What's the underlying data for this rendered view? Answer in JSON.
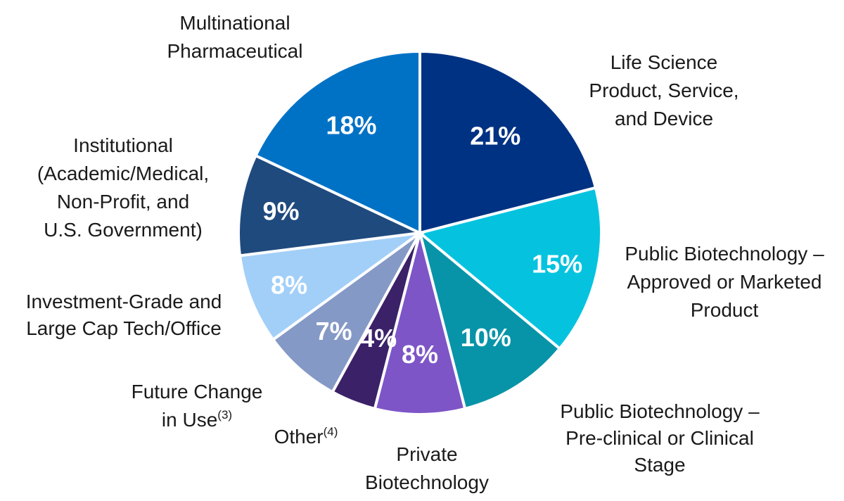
{
  "chart_data": {
    "type": "pie",
    "title": "",
    "slices": [
      {
        "label_lines": [
          "Life Science",
          "Product, Service,",
          "and Device"
        ],
        "percent_label": "21%",
        "value": 21,
        "color": "#003283"
      },
      {
        "label_lines": [
          "Public Biotechnology –",
          "Approved or Marketed",
          "Product"
        ],
        "percent_label": "15%",
        "value": 15,
        "color": "#05c3df"
      },
      {
        "label_lines": [
          "Public Biotechnology –",
          "Pre-clinical or Clinical",
          "Stage"
        ],
        "percent_label": "10%",
        "value": 10,
        "color": "#0894a8"
      },
      {
        "label_lines": [
          "Private",
          "Biotechnology"
        ],
        "percent_label": "8%",
        "value": 8,
        "color": "#7d55c7"
      },
      {
        "label_lines": [
          "Other"
        ],
        "label_sup": "(4)",
        "percent_label": "4%",
        "value": 4,
        "color": "#3b2168"
      },
      {
        "label_lines": [
          "Future Change",
          "in Use"
        ],
        "label_sup": "(3)",
        "percent_label": "7%",
        "value": 7,
        "color": "#8599c6"
      },
      {
        "label_lines": [
          "Investment-Grade and",
          "Large Cap Tech/Office"
        ],
        "percent_label": "8%",
        "value": 8,
        "color": "#a2cff8"
      },
      {
        "label_lines": [
          "Institutional",
          "(Academic/Medical,",
          "Non-Profit, and",
          "U.S. Government)"
        ],
        "percent_label": "9%",
        "value": 9,
        "color": "#1f4a7e"
      },
      {
        "label_lines": [
          "Multinational",
          "Pharmaceutical"
        ],
        "percent_label": "18%",
        "value": 18,
        "color": "#0072c6"
      }
    ]
  }
}
